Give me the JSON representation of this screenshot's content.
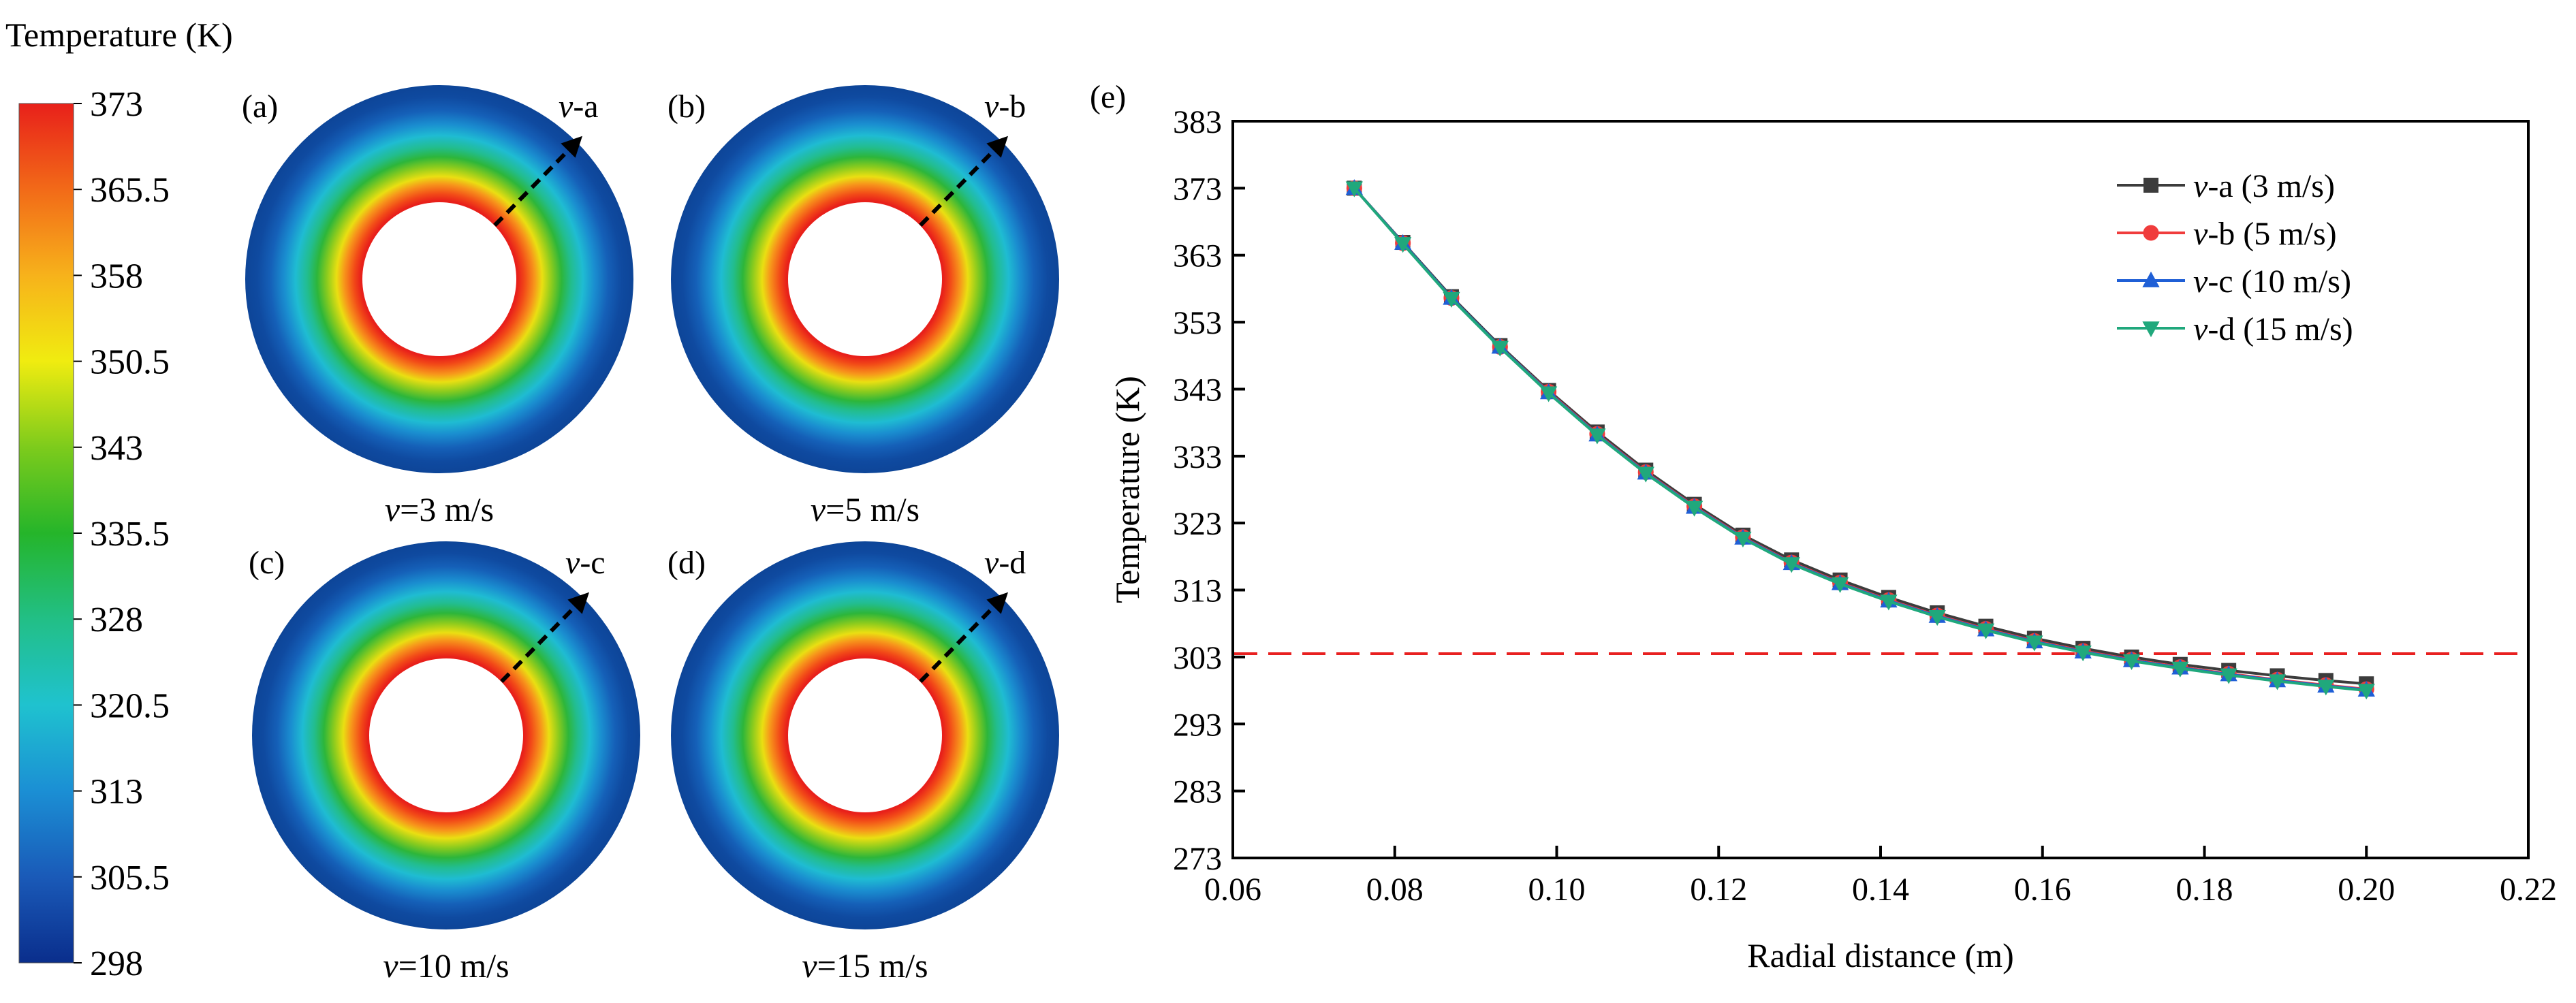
{
  "colorbar": {
    "title": "Temperature (K)",
    "ticks": [
      "373",
      "365.5",
      "358",
      "350.5",
      "343",
      "335.5",
      "328",
      "320.5",
      "313",
      "305.5",
      "298"
    ],
    "min": 298,
    "max": 373,
    "colors": [
      "#0a2e8c",
      "#1366c8",
      "#1fb2d6",
      "#1fc08a",
      "#2bba2b",
      "#8ccf1f",
      "#f2ee10",
      "#f6a81a",
      "#f25a18",
      "#e8201a"
    ]
  },
  "contours": [
    {
      "panel": "(a)",
      "probe_var": "v",
      "probe_suffix": "-a",
      "caption_var": "v",
      "caption_rest": "=3 m/s"
    },
    {
      "panel": "(b)",
      "probe_var": "v",
      "probe_suffix": "-b",
      "caption_var": "v",
      "caption_rest": "=5 m/s"
    },
    {
      "panel": "(c)",
      "probe_var": "v",
      "probe_suffix": "-c",
      "caption_var": "v",
      "caption_rest": "=10 m/s"
    },
    {
      "panel": "(d)",
      "probe_var": "v",
      "probe_suffix": "-d",
      "caption_var": "v",
      "caption_rest": "=15 m/s"
    }
  ],
  "chart_data": {
    "type": "line",
    "panel": "(e)",
    "xlabel": "Radial distance (m)",
    "ylabel": "Temperature (K)",
    "xlim": [
      0.06,
      0.22
    ],
    "ylim": [
      273,
      383
    ],
    "xticks": [
      0.06,
      0.08,
      0.1,
      0.12,
      0.14,
      0.16,
      0.18,
      0.2,
      0.22
    ],
    "xtick_labels": [
      "0.06",
      "0.08",
      "0.10",
      "0.12",
      "0.14",
      "0.16",
      "0.18",
      "0.20",
      "0.22"
    ],
    "yticks": [
      273,
      283,
      293,
      303,
      313,
      323,
      333,
      343,
      353,
      363,
      373,
      383
    ],
    "ytick_labels": [
      "273",
      "283",
      "293",
      "303",
      "313",
      "323",
      "333",
      "343",
      "353",
      "363",
      "373",
      "383"
    ],
    "x": [
      0.075,
      0.081,
      0.087,
      0.093,
      0.099,
      0.105,
      0.111,
      0.117,
      0.123,
      0.129,
      0.135,
      0.141,
      0.147,
      0.153,
      0.159,
      0.165,
      0.171,
      0.177,
      0.183,
      0.189,
      0.195,
      0.2
    ],
    "series": [
      {
        "name": "v-a (3 m/s)",
        "label_var": "v",
        "label_rest": "-a (3 m/s)",
        "color": "#3c3c3c",
        "marker": "square",
        "values": [
          373.0,
          364.9,
          356.8,
          349.5,
          342.8,
          336.6,
          330.9,
          325.8,
          321.2,
          317.5,
          314.5,
          311.9,
          309.6,
          307.6,
          305.8,
          304.3,
          303.0,
          301.9,
          301.0,
          300.2,
          299.5,
          299.0
        ]
      },
      {
        "name": "v-b (5 m/s)",
        "label_var": "v",
        "label_rest": "-b (5 m/s)",
        "color": "#f03c3c",
        "marker": "circle",
        "values": [
          373.0,
          364.8,
          356.6,
          349.3,
          342.6,
          336.3,
          330.6,
          325.5,
          320.9,
          317.1,
          314.1,
          311.5,
          309.2,
          307.2,
          305.4,
          303.9,
          302.6,
          301.5,
          300.5,
          299.6,
          298.8,
          298.2
        ]
      },
      {
        "name": "v-c (10 m/s)",
        "label_var": "v",
        "label_rest": "-c (10 m/s)",
        "color": "#1f5fd6",
        "marker": "triangle-up",
        "values": [
          373.0,
          364.8,
          356.6,
          349.3,
          342.5,
          336.2,
          330.5,
          325.4,
          320.8,
          317.0,
          314.0,
          311.4,
          309.1,
          307.1,
          305.3,
          303.8,
          302.5,
          301.4,
          300.4,
          299.5,
          298.7,
          298.1
        ]
      },
      {
        "name": "v-d (15 m/s)",
        "label_var": "v",
        "label_rest": "-d (15 m/s)",
        "color": "#20a87c",
        "marker": "triangle-down",
        "values": [
          373.0,
          364.7,
          356.5,
          349.2,
          342.4,
          336.1,
          330.4,
          325.3,
          320.7,
          316.9,
          313.9,
          311.3,
          309.0,
          307.0,
          305.2,
          303.7,
          302.4,
          301.3,
          300.3,
          299.4,
          298.6,
          298.0
        ]
      }
    ],
    "reference_line": {
      "y": 303.5,
      "color": "#e82020",
      "style": "dashed"
    },
    "legend_position": "top-right",
    "grid": false
  }
}
